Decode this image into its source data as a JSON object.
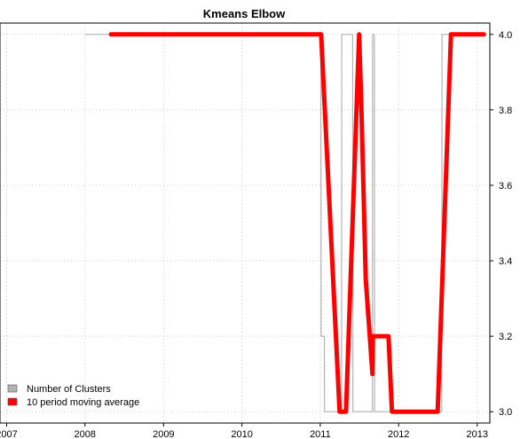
{
  "chart_data": {
    "type": "line",
    "title": "Kmeans Elbow",
    "xlabel": "",
    "ylabel": "",
    "x_axis": {
      "type": "date",
      "range": [
        "2006-12-01",
        "2013-03-01"
      ],
      "ticks": [
        {
          "value": "2007-01-01",
          "label": "2007"
        },
        {
          "value": "2008-01-01",
          "label": "2008"
        },
        {
          "value": "2009-01-01",
          "label": "2009"
        },
        {
          "value": "2010-01-01",
          "label": "2010"
        },
        {
          "value": "2011-01-01",
          "label": "2011"
        },
        {
          "value": "2012-01-01",
          "label": "2012"
        },
        {
          "value": "2013-01-01",
          "label": "2013"
        }
      ]
    },
    "y_axis": {
      "position": "right",
      "range": [
        2.97,
        4.03
      ],
      "ticks": [
        {
          "value": 3.0,
          "label": "3.0"
        },
        {
          "value": 3.2,
          "label": "3.2"
        },
        {
          "value": 3.4,
          "label": "3.4"
        },
        {
          "value": 3.6,
          "label": "3.6"
        },
        {
          "value": 3.8,
          "label": "3.8"
        },
        {
          "value": 4.0,
          "label": "4.0"
        }
      ]
    },
    "grid": true,
    "legend": {
      "placement": "bottom-left",
      "entries": [
        {
          "label": "Number of Clusters",
          "color": "#b3b3b3"
        },
        {
          "label": "10 period moving average",
          "color": "#ff0000"
        }
      ]
    },
    "series": [
      {
        "name": "Number of Clusters",
        "color": "#b3b3b3",
        "step": true,
        "points": [
          [
            "2008-01-01",
            4
          ],
          [
            "2011-01-04",
            4
          ],
          [
            "2011-01-05",
            3.2
          ],
          [
            "2011-01-20",
            3.2
          ],
          [
            "2011-01-21",
            3
          ],
          [
            "2011-04-10",
            3
          ],
          [
            "2011-04-11",
            4
          ],
          [
            "2011-06-01",
            4
          ],
          [
            "2011-06-02",
            3
          ],
          [
            "2011-09-01",
            3
          ],
          [
            "2011-09-02",
            4
          ],
          [
            "2011-09-10",
            4
          ],
          [
            "2011-09-11",
            3
          ],
          [
            "2012-07-20",
            3
          ],
          [
            "2012-07-21",
            4
          ],
          [
            "2013-01-20",
            4
          ]
        ]
      },
      {
        "name": "10 period moving average",
        "color": "#ff0000",
        "step": false,
        "points": [
          [
            "2008-05-01",
            4
          ],
          [
            "2011-01-05",
            4
          ],
          [
            "2011-04-01",
            3
          ],
          [
            "2011-05-01",
            3
          ],
          [
            "2011-07-01",
            4
          ],
          [
            "2011-07-12",
            3.8
          ],
          [
            "2011-08-01",
            3.35
          ],
          [
            "2011-09-01",
            3.1
          ],
          [
            "2011-09-03",
            3.2
          ],
          [
            "2011-09-15",
            3.2
          ],
          [
            "2011-10-01",
            3.2
          ],
          [
            "2011-11-15",
            3.2
          ],
          [
            "2011-12-01",
            3
          ],
          [
            "2012-07-01",
            3
          ],
          [
            "2012-09-01",
            4
          ],
          [
            "2013-02-01",
            4
          ]
        ]
      }
    ]
  }
}
